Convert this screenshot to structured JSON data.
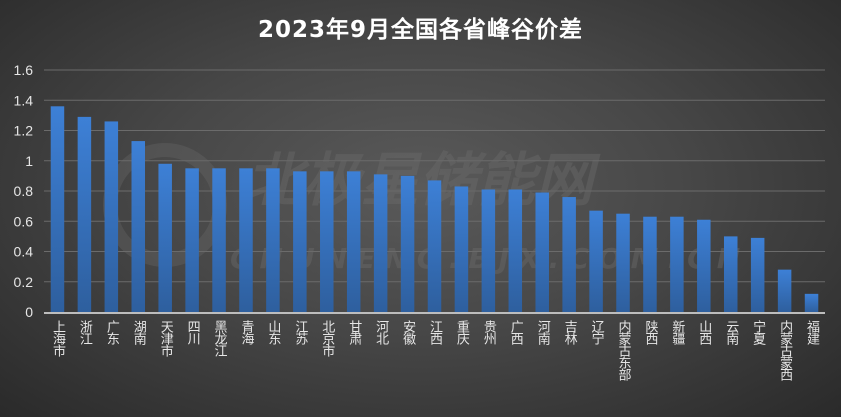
{
  "chart_data": {
    "type": "bar",
    "title": "2023年9月全国各省峰谷价差",
    "categories": [
      "上海市",
      "浙江",
      "广东",
      "湖南",
      "天津市",
      "四川",
      "黑龙江",
      "青海",
      "山东",
      "江苏",
      "北京市",
      "甘肃",
      "河北",
      "安徽",
      "江西",
      "重庆",
      "贵州",
      "广西",
      "河南",
      "吉林",
      "辽宁",
      "内蒙古东部",
      "陕西",
      "新疆",
      "山西",
      "云南",
      "宁夏",
      "内蒙古蒙西",
      "福建"
    ],
    "values": [
      1.36,
      1.29,
      1.26,
      1.13,
      0.98,
      0.95,
      0.95,
      0.95,
      0.95,
      0.93,
      0.93,
      0.93,
      0.91,
      0.9,
      0.87,
      0.83,
      0.81,
      0.81,
      0.79,
      0.76,
      0.67,
      0.65,
      0.63,
      0.63,
      0.61,
      0.5,
      0.49,
      0.28,
      0.12
    ],
    "ylim": [
      0,
      1.6
    ],
    "yticks": [
      "0",
      "0.2",
      "0.4",
      "0.6",
      "0.8",
      "1",
      "1.2",
      "1.4",
      "1.6"
    ],
    "grid": true,
    "bar_color": "#3a7bd0",
    "background": "#444444"
  },
  "watermark": {
    "text": "北极星储能网",
    "url": "CHUNENG.BJX.COM.CN"
  }
}
